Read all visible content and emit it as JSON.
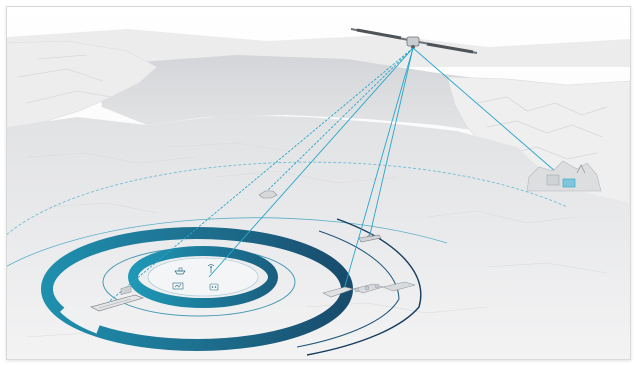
{
  "scene": {
    "accent_color": "#1d7a98",
    "ring_dark_color": "#173d5e",
    "link_color": "#2aa6c9",
    "ice_color": "#e6e7e8",
    "inner_ring_label": "",
    "outer_ring_label": "",
    "hub_labels": [
      "",
      "",
      "",
      ""
    ]
  }
}
